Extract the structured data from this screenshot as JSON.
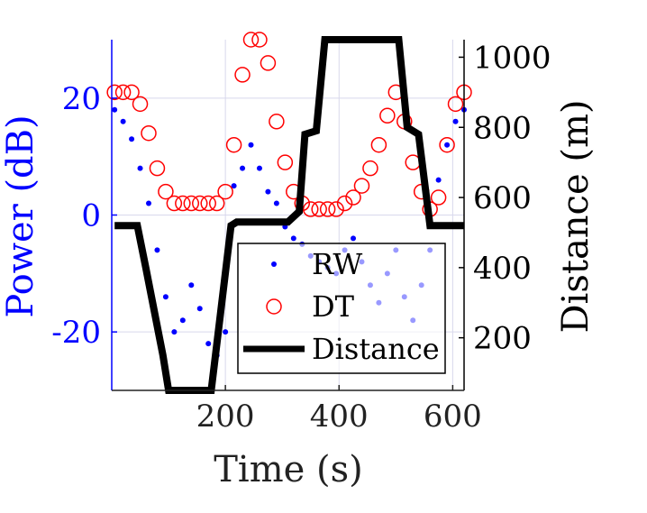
{
  "chart_data": {
    "type": "scatter",
    "xlabel": "Time (s)",
    "ylabel_left": "Power (dB)",
    "ylabel_right": "Distance (m)",
    "xlim": [
      0,
      620
    ],
    "ylim_left": [
      -30,
      30
    ],
    "ylim_right": [
      50,
      1050
    ],
    "xticks": [
      200,
      400,
      600
    ],
    "yticks_left": [
      -20,
      0,
      20
    ],
    "yticks_right": [
      200,
      400,
      600,
      800,
      1000
    ],
    "grid": true,
    "legend": {
      "position": "bottom-right",
      "entries": [
        "RW",
        "DT",
        "Distance"
      ]
    },
    "series": [
      {
        "name": "RW",
        "marker": "dot",
        "color": "#0000ff",
        "x": [
          5,
          20,
          35,
          50,
          65,
          80,
          95,
          110,
          125,
          140,
          155,
          170,
          185,
          200,
          215,
          230,
          245,
          260,
          275,
          290,
          305,
          320,
          335,
          350,
          365,
          380,
          395,
          410,
          425,
          440,
          455,
          470,
          485,
          500,
          515,
          530,
          545,
          560,
          575,
          590,
          605,
          620
        ],
        "y": [
          18,
          16,
          13,
          8,
          2,
          -6,
          -14,
          -20,
          -18,
          -12,
          -16,
          -22,
          -24,
          -20,
          5,
          8,
          12,
          8,
          4,
          2,
          -2,
          -4,
          -5,
          -7,
          -8,
          -9,
          -10,
          -6,
          -4,
          -8,
          -12,
          -15,
          -10,
          -6,
          -14,
          -18,
          -12,
          -6,
          6,
          12,
          16,
          18
        ]
      },
      {
        "name": "DT",
        "marker": "circle",
        "color": "#ff0000",
        "x": [
          5,
          20,
          35,
          50,
          65,
          80,
          95,
          110,
          125,
          140,
          155,
          170,
          185,
          200,
          215,
          230,
          245,
          260,
          275,
          290,
          305,
          320,
          335,
          350,
          365,
          380,
          395,
          410,
          425,
          440,
          455,
          470,
          485,
          500,
          515,
          530,
          545,
          560,
          575,
          590,
          605,
          620
        ],
        "y": [
          21,
          21,
          21,
          19,
          14,
          8,
          4,
          2,
          2,
          2,
          2,
          2,
          2,
          4,
          12,
          24,
          30,
          30,
          26,
          16,
          9,
          4,
          2,
          1,
          1,
          1,
          1,
          2,
          3,
          5,
          8,
          12,
          17,
          21,
          16,
          9,
          4,
          1,
          3,
          12,
          19,
          21
        ]
      },
      {
        "name": "Distance",
        "marker": "line",
        "color": "#000000",
        "x": [
          5,
          45,
          60,
          90,
          100,
          150,
          175,
          190,
          210,
          220,
          240,
          310,
          330,
          340,
          360,
          375,
          505,
          520,
          540,
          560,
          575,
          620
        ],
        "y": [
          520,
          520,
          400,
          150,
          50,
          50,
          50,
          250,
          520,
          530,
          530,
          530,
          560,
          780,
          790,
          1050,
          1050,
          800,
          780,
          520,
          520,
          520
        ]
      }
    ]
  }
}
